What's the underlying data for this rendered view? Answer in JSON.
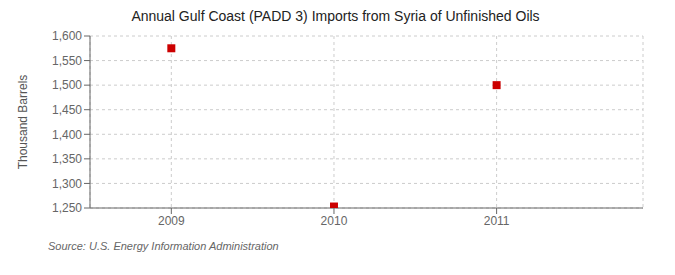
{
  "chart_data": {
    "type": "scatter",
    "title": "Annual Gulf Coast (PADD 3) Imports from Syria of Unfinished Oils",
    "ylabel": "Thousand Barrels",
    "source": "Source: U.S. Energy Information Administration",
    "x": [
      2009,
      2010,
      2011
    ],
    "values": [
      1575,
      1253,
      1500
    ],
    "color": "#cc0000",
    "marker": "square",
    "xlim": [
      2008.5,
      2011.9
    ],
    "xticks": [
      2009,
      2010,
      2011
    ],
    "ylim": [
      1250,
      1600
    ],
    "yticks": [
      {
        "value": 1250,
        "label": "1,250"
      },
      {
        "value": 1300,
        "label": "1,300"
      },
      {
        "value": 1350,
        "label": "1,350"
      },
      {
        "value": 1400,
        "label": "1,400"
      },
      {
        "value": 1450,
        "label": "1,450"
      },
      {
        "value": 1500,
        "label": "1,500"
      },
      {
        "value": 1550,
        "label": "1,550"
      },
      {
        "value": 1600,
        "label": "1,600"
      }
    ],
    "grid": true
  }
}
